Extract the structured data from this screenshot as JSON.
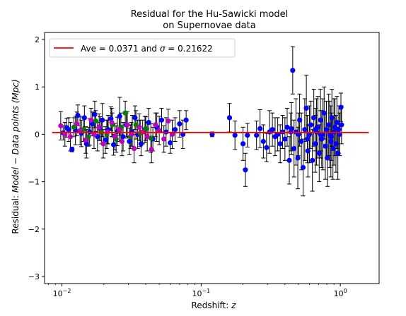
{
  "chart_data": {
    "type": "scatter",
    "title": "Residual for the Hu-Sawicki model",
    "subtitle": "on Supernovae data",
    "xlabel": "Redshift: ",
    "xlabel_var": "z",
    "ylabel_prefix": "Residual: ",
    "ylabel_model": "Model",
    "ylabel_minus": " − ",
    "ylabel_data": "Data points (Mpc)",
    "x_scale": "log",
    "xlim": [
      0.0075,
      1.9
    ],
    "ylim": [
      -3.15,
      2.15
    ],
    "x_ticks": [
      {
        "value": 0.01,
        "base": "10",
        "exp": "−2"
      },
      {
        "value": 0.1,
        "base": "10",
        "exp": "−1"
      },
      {
        "value": 1,
        "base": "10",
        "exp": "0"
      }
    ],
    "y_ticks": [
      {
        "value": 2,
        "label": "2"
      },
      {
        "value": 1,
        "label": "1"
      },
      {
        "value": 0,
        "label": "0"
      },
      {
        "value": -1,
        "label": "−1"
      },
      {
        "value": -2,
        "label": "−2"
      },
      {
        "value": -3,
        "label": "−3"
      }
    ],
    "average_line": {
      "value": 0.0371,
      "x_range": [
        0.0085,
        1.6
      ],
      "color": "#ff0000"
    },
    "legend": {
      "placement": "top-left",
      "label_prefix": "Ave = 0.0371 and ",
      "label_sigma": "σ",
      "label_suffix": " = 0.21622"
    },
    "errorbar_color": "#000000",
    "series": [
      {
        "color": "#0000ff",
        "points": [
          [
            0.0102,
            0.03,
            0.15
          ],
          [
            0.0108,
            0.14,
            0.2
          ],
          [
            0.0112,
            0.1,
            0.25
          ],
          [
            0.0118,
            -0.32,
            0.05
          ],
          [
            0.0125,
            0.08,
            0.3
          ],
          [
            0.013,
            0.4,
            0.22
          ],
          [
            0.0138,
            0.02,
            0.28
          ],
          [
            0.0145,
            0.35,
            0.25
          ],
          [
            0.015,
            -0.2,
            0.3
          ],
          [
            0.0158,
            0.05,
            0.28
          ],
          [
            0.0165,
            0.22,
            0.25
          ],
          [
            0.0172,
            0.42,
            0.28
          ],
          [
            0.018,
            -0.05,
            0.3
          ],
          [
            0.0188,
            0.12,
            0.25
          ],
          [
            0.0195,
            0.3,
            0.35
          ],
          [
            0.0205,
            -0.12,
            0.28
          ],
          [
            0.0215,
            0.1,
            0.3
          ],
          [
            0.0225,
            0.33,
            0.25
          ],
          [
            0.0235,
            -0.22,
            0.22
          ],
          [
            0.025,
            0.06,
            0.3
          ],
          [
            0.026,
            0.38,
            0.4
          ],
          [
            0.0275,
            -0.05,
            0.3
          ],
          [
            0.029,
            0.2,
            0.25
          ],
          [
            0.0305,
            -0.15,
            0.28
          ],
          [
            0.032,
            0.05,
            0.35
          ],
          [
            0.0335,
            0.35,
            0.25
          ],
          [
            0.035,
            0.0,
            0.3
          ],
          [
            0.037,
            -0.2,
            0.25
          ],
          [
            0.0395,
            0.1,
            0.28
          ],
          [
            0.042,
            0.25,
            0.3
          ],
          [
            0.045,
            -0.1,
            0.25
          ],
          [
            0.048,
            0.15,
            0.3
          ],
          [
            0.052,
            0.3,
            0.25
          ],
          [
            0.056,
            0.05,
            0.3
          ],
          [
            0.06,
            -0.18,
            0.22
          ],
          [
            0.065,
            0.1,
            0.25
          ],
          [
            0.07,
            0.22,
            0.28
          ],
          [
            0.074,
            0.0,
            0.3
          ],
          [
            0.078,
            0.3,
            0.2
          ],
          [
            0.12,
            0.0,
            0.05
          ],
          [
            0.16,
            0.35,
            0.3
          ],
          [
            0.175,
            -0.02,
            0.3
          ],
          [
            0.2,
            -0.2,
            0.35
          ],
          [
            0.208,
            -0.75,
            0.35
          ],
          [
            0.215,
            -0.02,
            0.25
          ],
          [
            0.25,
            -0.02,
            0.3
          ],
          [
            0.265,
            0.12,
            0.4
          ],
          [
            0.28,
            -0.15,
            0.35
          ],
          [
            0.295,
            -0.28,
            0.3
          ],
          [
            0.31,
            0.05,
            0.45
          ],
          [
            0.325,
            0.1,
            0.35
          ],
          [
            0.34,
            -0.05,
            0.4
          ],
          [
            0.355,
            0.0,
            0.35
          ],
          [
            0.37,
            -0.2,
            0.4
          ],
          [
            0.385,
            0.05,
            0.35
          ],
          [
            0.4,
            -0.1,
            0.45
          ],
          [
            0.415,
            0.15,
            0.4
          ],
          [
            0.43,
            -0.55,
            0.5
          ],
          [
            0.445,
            0.12,
            0.55
          ],
          [
            0.455,
            1.35,
            0.5
          ],
          [
            0.465,
            -0.3,
            0.6
          ],
          [
            0.48,
            0.05,
            0.7
          ],
          [
            0.495,
            -0.5,
            0.65
          ],
          [
            0.51,
            0.3,
            0.55
          ],
          [
            0.525,
            -0.15,
            0.6
          ],
          [
            0.54,
            -0.7,
            0.6
          ],
          [
            0.555,
            0.1,
            0.65
          ],
          [
            0.57,
            0.55,
            0.7
          ],
          [
            0.585,
            -0.35,
            0.55
          ],
          [
            0.6,
            0.0,
            0.6
          ],
          [
            0.615,
            0.2,
            0.5
          ],
          [
            0.63,
            -0.55,
            0.65
          ],
          [
            0.645,
            0.35,
            0.6
          ],
          [
            0.66,
            -0.2,
            0.6
          ],
          [
            0.675,
            0.05,
            0.7
          ],
          [
            0.69,
            0.15,
            0.65
          ],
          [
            0.705,
            -0.4,
            0.6
          ],
          [
            0.72,
            0.3,
            0.65
          ],
          [
            0.735,
            -0.1,
            0.6
          ],
          [
            0.75,
            0.0,
            0.75
          ],
          [
            0.765,
            0.45,
            0.55
          ],
          [
            0.78,
            -0.25,
            0.7
          ],
          [
            0.795,
            0.1,
            0.6
          ],
          [
            0.81,
            -0.5,
            0.6
          ],
          [
            0.825,
            0.2,
            0.65
          ],
          [
            0.84,
            0.0,
            0.7
          ],
          [
            0.855,
            -0.15,
            0.75
          ],
          [
            0.87,
            0.35,
            0.6
          ],
          [
            0.885,
            -0.3,
            0.65
          ],
          [
            0.9,
            0.05,
            0.7
          ],
          [
            0.915,
            0.15,
            0.6
          ],
          [
            0.93,
            -0.2,
            0.6
          ],
          [
            0.945,
            0.25,
            0.55
          ],
          [
            0.96,
            -0.4,
            0.55
          ],
          [
            0.975,
            0.1,
            0.5
          ],
          [
            0.99,
            0.0,
            0.45
          ],
          [
            1.01,
            0.57,
            0.3
          ],
          [
            1.02,
            0.2,
            0.4
          ],
          [
            0.86,
            -0.05,
            0.5
          ],
          [
            0.72,
            0.0,
            0.5
          ],
          [
            0.66,
            0.1,
            0.45
          ],
          [
            0.58,
            -0.1,
            0.5
          ],
          [
            0.5,
            0.0,
            0.45
          ],
          [
            0.44,
            0.05,
            0.4
          ]
        ]
      },
      {
        "color": "#008000",
        "points": [
          [
            0.0122,
            0.15,
            0.2
          ],
          [
            0.0142,
            0.1,
            0.25
          ],
          [
            0.0155,
            -0.05,
            0.2
          ],
          [
            0.0175,
            0.28,
            0.22
          ],
          [
            0.0192,
            0.05,
            0.25
          ],
          [
            0.021,
            0.0,
            0.3
          ],
          [
            0.023,
            0.2,
            0.25
          ],
          [
            0.0245,
            -0.1,
            0.28
          ],
          [
            0.0265,
            0.15,
            0.3
          ],
          [
            0.0285,
            0.45,
            0.25
          ],
          [
            0.031,
            -0.05,
            0.25
          ],
          [
            0.034,
            0.2,
            0.3
          ],
          [
            0.0365,
            0.02,
            0.28
          ],
          [
            0.04,
            0.12,
            0.25
          ],
          [
            0.0435,
            -0.08,
            0.3
          ]
        ]
      },
      {
        "color": "#bf00bf",
        "points": [
          [
            0.0098,
            0.18,
            0.3
          ],
          [
            0.0105,
            0.0,
            0.25
          ],
          [
            0.0115,
            -0.05,
            0.3
          ],
          [
            0.0128,
            0.22,
            0.25
          ],
          [
            0.0135,
            0.08,
            0.3
          ],
          [
            0.0148,
            -0.12,
            0.28
          ],
          [
            0.0162,
            0.3,
            0.25
          ],
          [
            0.017,
            0.0,
            0.3
          ],
          [
            0.0185,
            0.15,
            0.28
          ],
          [
            0.0198,
            -0.2,
            0.3
          ],
          [
            0.0212,
            0.05,
            0.25
          ],
          [
            0.0228,
            0.25,
            0.3
          ],
          [
            0.024,
            -0.05,
            0.28
          ],
          [
            0.0258,
            0.1,
            0.25
          ],
          [
            0.027,
            -0.15,
            0.3
          ],
          [
            0.0295,
            0.2,
            0.28
          ],
          [
            0.0315,
            0.0,
            0.25
          ],
          [
            0.033,
            -0.3,
            0.3
          ],
          [
            0.036,
            0.15,
            0.28
          ],
          [
            0.038,
            0.05,
            0.25
          ],
          [
            0.041,
            -0.05,
            0.3
          ],
          [
            0.044,
            -0.32,
            0.28
          ],
          [
            0.047,
            0.2,
            0.25
          ],
          [
            0.05,
            0.08,
            0.3
          ],
          [
            0.054,
            -0.1,
            0.28
          ],
          [
            0.058,
            0.28,
            0.25
          ],
          [
            0.062,
            0.0,
            0.3
          ]
        ]
      }
    ]
  }
}
